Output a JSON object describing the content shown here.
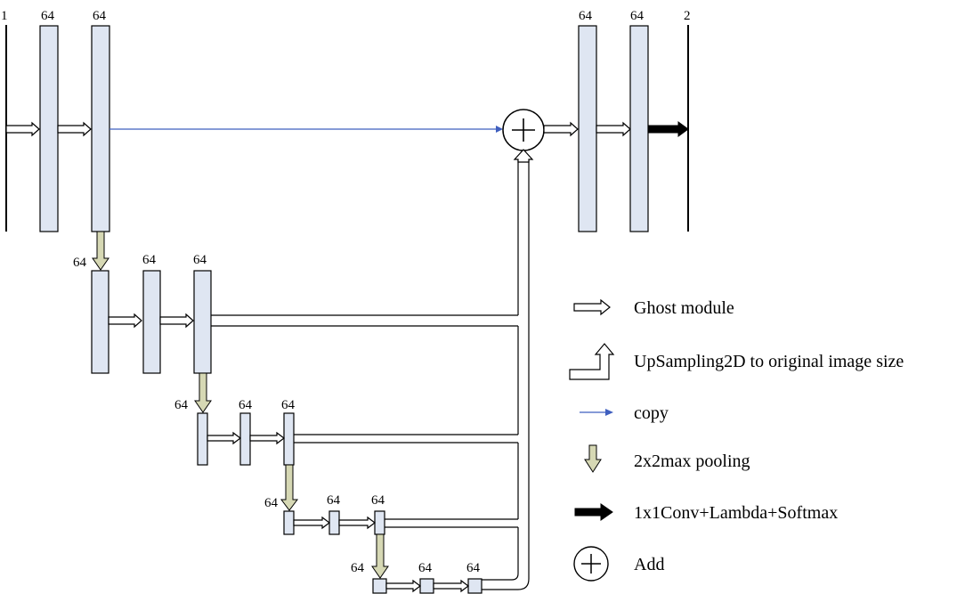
{
  "levels": [
    {
      "labels": [
        "1",
        "64",
        "64"
      ],
      "out_labels": [
        "64",
        "64",
        "2"
      ]
    },
    {
      "labels": [
        "64",
        "64",
        "64"
      ]
    },
    {
      "labels": [
        "64",
        "64",
        "64"
      ]
    },
    {
      "labels": [
        "64",
        "64",
        "64"
      ]
    },
    {
      "labels": [
        "64",
        "64",
        "64"
      ]
    }
  ],
  "legend": {
    "ghost": "Ghost module",
    "upsampling": "UpSampling2D to original image size",
    "copy": "copy",
    "pooling": "2x2max pooling",
    "conv": "1x1Conv+Lambda+Softmax",
    "add": "Add"
  },
  "colors": {
    "block_fill": "#dfe6f2",
    "pooling_fill": "#d6d8b4",
    "copy_line": "#3f5fbf"
  }
}
